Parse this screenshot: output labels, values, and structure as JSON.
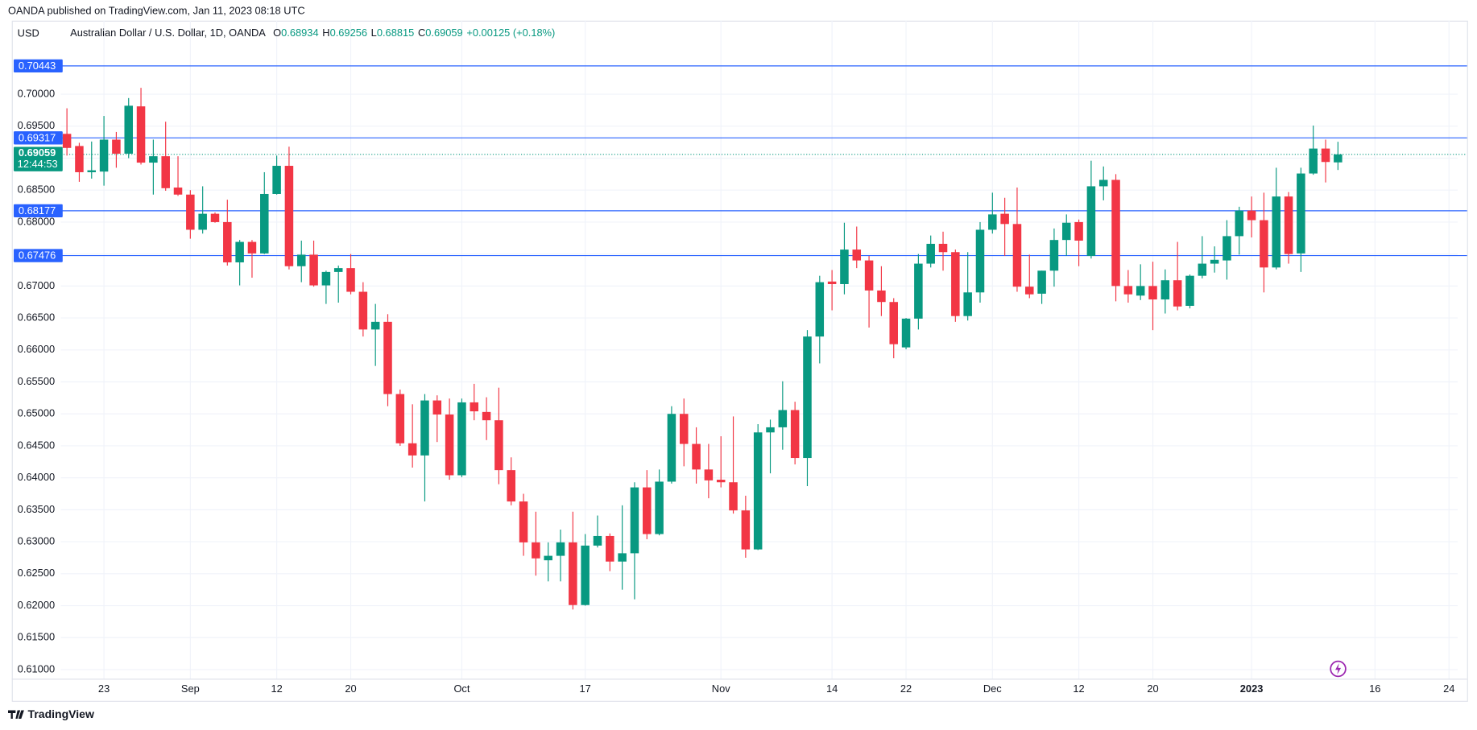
{
  "chart_data": {
    "type": "candlestick",
    "published": "OANDA published on TradingView.com, Jan 11, 2023 08:18 UTC",
    "currency": "USD",
    "legend_name": "Australian Dollar / U.S. Dollar, 1D, OANDA",
    "legend_keys": [
      "O",
      "H",
      "L",
      "C"
    ],
    "change": "+0.00125 (+0.18%)",
    "countdown": "12:44:53",
    "brand": "TradingView",
    "up_color": "#089981",
    "down_color": "#f23645",
    "level_color": "#2962ff",
    "open": [
      0.6938,
      0.6919,
      0.6878,
      0.6879,
      0.6929,
      0.6907,
      0.6981,
      0.6893,
      0.6903,
      0.6854,
      0.6843,
      0.6788,
      0.6813,
      0.68,
      0.6737,
      0.6769,
      0.6751,
      0.6844,
      0.6888,
      0.6731,
      0.6749,
      0.6701,
      0.6722,
      0.6728,
      0.6691,
      0.6632,
      0.6644,
      0.6531,
      0.6454,
      0.6435,
      0.6521,
      0.6499,
      0.6404,
      0.6518,
      0.6503,
      0.649,
      0.6412,
      0.6363,
      0.6299,
      0.6271,
      0.6278,
      0.6299,
      0.6201,
      0.6294,
      0.6309,
      0.6269,
      0.6282,
      0.6385,
      0.6312,
      0.6394,
      0.65,
      0.6453,
      0.6413,
      0.6397,
      0.6393,
      0.6349,
      0.6288,
      0.6471,
      0.6479,
      0.6506,
      0.6431,
      0.6621,
      0.6707,
      0.6703,
      0.6757,
      0.674,
      0.6693,
      0.6675,
      0.6604,
      0.6649,
      0.6735,
      0.6766,
      0.6753,
      0.6653,
      0.669,
      0.6788,
      0.6813,
      0.6797,
      0.6699,
      0.6688,
      0.6724,
      0.6772,
      0.68,
      0.6747,
      0.6856,
      0.6866,
      0.67,
      0.6685,
      0.67,
      0.6679,
      0.6709,
      0.6669,
      0.6716,
      0.6735,
      0.674,
      0.6778,
      0.6818,
      0.6803,
      0.6729,
      0.684,
      0.6751,
      0.6876,
      0.6915,
      0.68934
    ],
    "high": [
      0.6978,
      0.6924,
      0.6926,
      0.6966,
      0.6941,
      0.6994,
      0.701,
      0.6929,
      0.6957,
      0.6903,
      0.685,
      0.6856,
      0.6815,
      0.6835,
      0.6772,
      0.6772,
      0.6878,
      0.6904,
      0.6918,
      0.6771,
      0.6771,
      0.6724,
      0.6732,
      0.675,
      0.6706,
      0.6672,
      0.6656,
      0.6538,
      0.6515,
      0.6531,
      0.6529,
      0.6524,
      0.6524,
      0.6547,
      0.6526,
      0.6541,
      0.6432,
      0.6375,
      0.6347,
      0.6299,
      0.6319,
      0.6347,
      0.6312,
      0.6341,
      0.6313,
      0.6357,
      0.6393,
      0.6412,
      0.6413,
      0.6512,
      0.6524,
      0.6479,
      0.6453,
      0.6465,
      0.6496,
      0.6372,
      0.6484,
      0.6491,
      0.6551,
      0.6519,
      0.6631,
      0.6716,
      0.6725,
      0.6799,
      0.6793,
      0.6747,
      0.6731,
      0.6681,
      0.665,
      0.675,
      0.6779,
      0.6785,
      0.6757,
      0.6753,
      0.68,
      0.6846,
      0.6838,
      0.6854,
      0.6749,
      0.6724,
      0.679,
      0.6812,
      0.6804,
      0.6896,
      0.6887,
      0.6875,
      0.6725,
      0.6734,
      0.6738,
      0.6726,
      0.6769,
      0.6718,
      0.6778,
      0.6762,
      0.6803,
      0.6824,
      0.684,
      0.6846,
      0.6885,
      0.6847,
      0.6885,
      0.6951,
      0.6929,
      0.69256
    ],
    "low": [
      0.6904,
      0.6863,
      0.6868,
      0.6857,
      0.6885,
      0.69,
      0.689,
      0.6843,
      0.6849,
      0.6841,
      0.6774,
      0.6782,
      0.6799,
      0.6732,
      0.6701,
      0.6713,
      0.675,
      0.6843,
      0.6726,
      0.6706,
      0.6699,
      0.6672,
      0.6674,
      0.6687,
      0.6621,
      0.6575,
      0.6512,
      0.645,
      0.6416,
      0.6363,
      0.6456,
      0.6397,
      0.6401,
      0.649,
      0.6459,
      0.639,
      0.6357,
      0.6278,
      0.6247,
      0.6238,
      0.6238,
      0.6194,
      0.62,
      0.6291,
      0.6254,
      0.6225,
      0.621,
      0.6304,
      0.631,
      0.6391,
      0.6418,
      0.6391,
      0.6368,
      0.6385,
      0.6344,
      0.6275,
      0.6287,
      0.6407,
      0.6444,
      0.6421,
      0.6387,
      0.6579,
      0.6662,
      0.6687,
      0.6728,
      0.6635,
      0.6653,
      0.6587,
      0.6601,
      0.6632,
      0.6729,
      0.6724,
      0.6644,
      0.6646,
      0.6674,
      0.6782,
      0.6747,
      0.6691,
      0.6681,
      0.6672,
      0.6699,
      0.6747,
      0.6731,
      0.6743,
      0.6834,
      0.6676,
      0.6674,
      0.6678,
      0.6631,
      0.6657,
      0.6662,
      0.6665,
      0.6712,
      0.6721,
      0.671,
      0.6749,
      0.6776,
      0.669,
      0.6726,
      0.6735,
      0.6722,
      0.6874,
      0.6862,
      0.68815
    ],
    "close": [
      0.6916,
      0.6878,
      0.6881,
      0.6929,
      0.6907,
      0.6982,
      0.6893,
      0.6903,
      0.6853,
      0.6843,
      0.6788,
      0.6813,
      0.68,
      0.6737,
      0.6769,
      0.6751,
      0.6844,
      0.6888,
      0.6731,
      0.6749,
      0.6701,
      0.6722,
      0.6728,
      0.6691,
      0.6632,
      0.6644,
      0.6531,
      0.6454,
      0.6435,
      0.6521,
      0.6499,
      0.6404,
      0.6518,
      0.6504,
      0.649,
      0.6412,
      0.6363,
      0.6299,
      0.6274,
      0.6278,
      0.6299,
      0.6201,
      0.6294,
      0.6309,
      0.6269,
      0.6282,
      0.6385,
      0.6312,
      0.6394,
      0.65,
      0.6453,
      0.6413,
      0.6396,
      0.6393,
      0.6349,
      0.6288,
      0.6471,
      0.6479,
      0.6506,
      0.6431,
      0.6621,
      0.6706,
      0.6703,
      0.6757,
      0.674,
      0.6693,
      0.6675,
      0.6609,
      0.6649,
      0.6735,
      0.6766,
      0.6753,
      0.6653,
      0.669,
      0.6788,
      0.6812,
      0.6797,
      0.6699,
      0.6687,
      0.6724,
      0.6772,
      0.6799,
      0.6771,
      0.6856,
      0.6866,
      0.67,
      0.6687,
      0.67,
      0.6679,
      0.6709,
      0.6668,
      0.6716,
      0.6735,
      0.6741,
      0.6778,
      0.6818,
      0.6803,
      0.6729,
      0.684,
      0.675,
      0.6876,
      0.6915,
      0.6894,
      0.69059
    ],
    "xlim": [
      -0.5,
      112.7
    ],
    "xticks": [
      {
        "value": 3,
        "label": "23"
      },
      {
        "value": 10,
        "label": "Sep"
      },
      {
        "value": 17,
        "label": "12"
      },
      {
        "value": 23,
        "label": "20"
      },
      {
        "value": 32,
        "label": "Oct"
      },
      {
        "value": 42,
        "label": "17"
      },
      {
        "value": 53,
        "label": "Nov"
      },
      {
        "value": 62,
        "label": "14"
      },
      {
        "value": 68,
        "label": "22"
      },
      {
        "value": 75,
        "label": "Dec"
      },
      {
        "value": 82,
        "label": "12"
      },
      {
        "value": 88,
        "label": "20"
      },
      {
        "value": 96,
        "label": "2023"
      },
      {
        "value": 106,
        "label": "16"
      },
      {
        "value": 112,
        "label": "24"
      }
    ],
    "ylim": [
      0.6085,
      0.7115
    ],
    "yticks": [
      {
        "value": 0.61,
        "label": "0.61000"
      },
      {
        "value": 0.615,
        "label": "0.61500"
      },
      {
        "value": 0.62,
        "label": "0.62000"
      },
      {
        "value": 0.625,
        "label": "0.62500"
      },
      {
        "value": 0.63,
        "label": "0.63000"
      },
      {
        "value": 0.635,
        "label": "0.63500"
      },
      {
        "value": 0.64,
        "label": "0.64000"
      },
      {
        "value": 0.645,
        "label": "0.64500"
      },
      {
        "value": 0.65,
        "label": "0.65000"
      },
      {
        "value": 0.655,
        "label": "0.65500"
      },
      {
        "value": 0.66,
        "label": "0.66000"
      },
      {
        "value": 0.665,
        "label": "0.66500"
      },
      {
        "value": 0.67,
        "label": "0.67000"
      },
      {
        "value": 0.675,
        "label": "0.67500"
      },
      {
        "value": 0.68,
        "label": "0.68000"
      },
      {
        "value": 0.685,
        "label": "0.68500"
      },
      {
        "value": 0.69,
        "label": "0.69000"
      },
      {
        "value": 0.695,
        "label": "0.69500"
      },
      {
        "value": 0.7,
        "label": "0.70000"
      }
    ],
    "grid": true,
    "levels": [
      {
        "value": 0.70443,
        "label": "0.70443"
      },
      {
        "value": 0.69317,
        "label": "0.69317"
      },
      {
        "value": 0.68177,
        "label": "0.68177"
      },
      {
        "value": 0.67476,
        "label": "0.67476"
      }
    ]
  }
}
